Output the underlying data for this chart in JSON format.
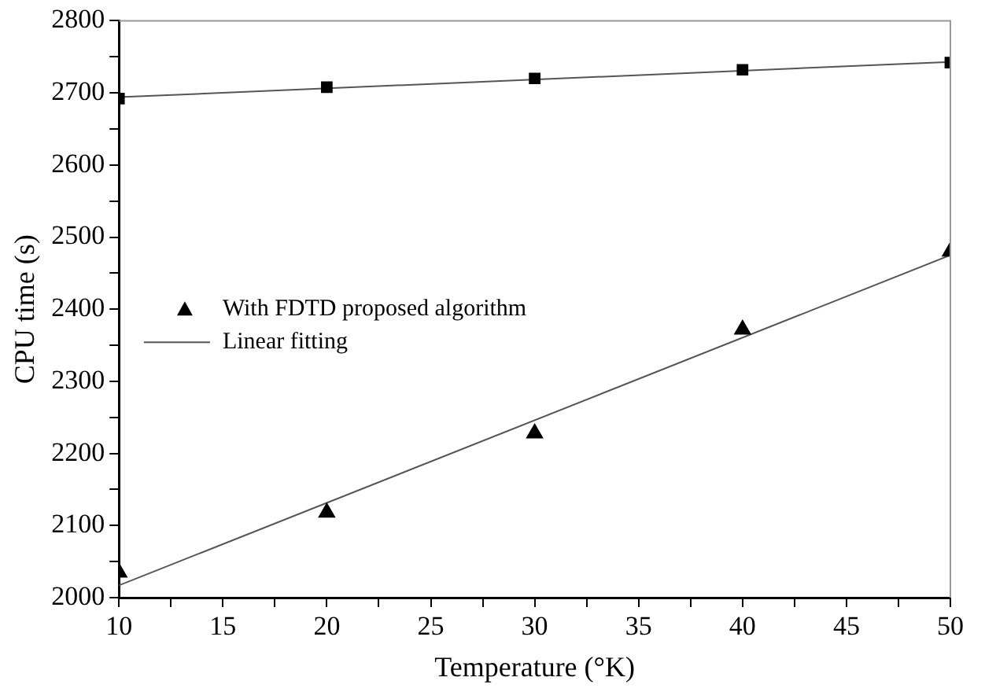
{
  "chart_data": {
    "type": "scatter",
    "xlabel": "Temperature (°K)",
    "ylabel": "CPU time (s)",
    "x": [
      10,
      20,
      30,
      40,
      50
    ],
    "series": [
      {
        "color": "#000000",
        "marker": "square",
        "values": [
          2692,
          2708,
          2720,
          2732,
          2742
        ]
      },
      {
        "name": "With FDTD proposed algorithm",
        "color": "#000000",
        "marker": "triangle",
        "values": [
          2035,
          2118,
          2228,
          2372,
          2480
        ]
      },
      {
        "name": "Linear fitting",
        "type": "line",
        "color": "#555555",
        "marker": "none",
        "values": [
          2017,
          null,
          null,
          null,
          2475
        ]
      },
      {
        "type": "line",
        "color": "#555555",
        "marker": "none",
        "values": [
          2694,
          null,
          null,
          null,
          2743
        ]
      }
    ],
    "xlim": [
      10,
      50
    ],
    "xticks": [
      10,
      {
        "value": 12.5,
        "label": null
      },
      15,
      {
        "value": 17.5,
        "label": null
      },
      20,
      {
        "value": 22.5,
        "label": null
      },
      25,
      {
        "value": 27.5,
        "label": null
      },
      30,
      {
        "value": 32.5,
        "label": null
      },
      35,
      {
        "value": 37.5,
        "label": null
      },
      40,
      {
        "value": 42.5,
        "label": null
      },
      45,
      {
        "value": 47.5,
        "label": null
      },
      50
    ],
    "ylim": [
      2000,
      2800
    ],
    "yticks": [
      2000,
      {
        "value": 2050,
        "label": null
      },
      2100,
      {
        "value": 2150,
        "label": null
      },
      2200,
      {
        "value": 2250,
        "label": null
      },
      2300,
      {
        "value": 2350,
        "label": null
      },
      2400,
      {
        "value": 2450,
        "label": null
      },
      2500,
      {
        "value": 2550,
        "label": null
      },
      2600,
      {
        "value": 2650,
        "label": null
      },
      2700,
      {
        "value": 2750,
        "label": null
      },
      2800
    ],
    "legend": "left",
    "grid": false
  }
}
